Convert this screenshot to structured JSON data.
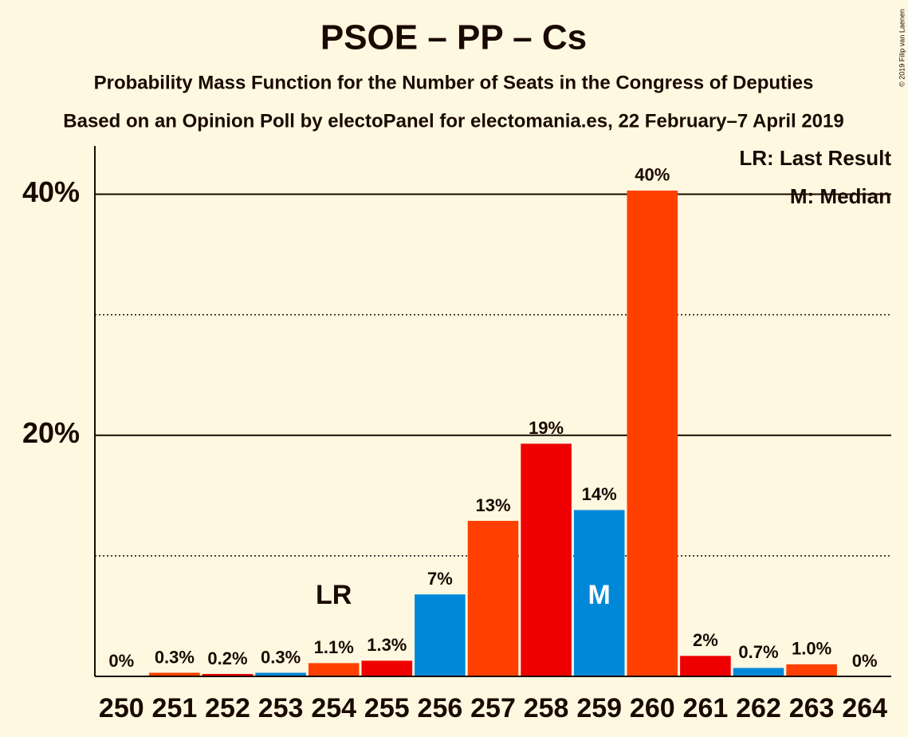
{
  "chart_data": {
    "type": "bar",
    "title": "PSOE – PP – Cs",
    "subtitle": "Probability Mass Function for the Number of Seats in the Congress of Deputies",
    "source": "Based on an Opinion Poll by electoPanel for electomania.es, 22 February–7 April 2019",
    "copyright": "© 2019 Filip van Laenen",
    "categories": [
      "250",
      "251",
      "252",
      "253",
      "254",
      "255",
      "256",
      "257",
      "258",
      "259",
      "260",
      "261",
      "262",
      "263",
      "264"
    ],
    "values": [
      0,
      0.3,
      0.2,
      0.3,
      1.1,
      1.3,
      6.8,
      12.9,
      19.3,
      13.8,
      40.3,
      1.7,
      0.7,
      1.0,
      0
    ],
    "value_labels": [
      "0%",
      "0.3%",
      "0.2%",
      "0.3%",
      "1.1%",
      "1.3%",
      "7%",
      "13%",
      "19%",
      "14%",
      "40%",
      "2%",
      "0.7%",
      "1.0%",
      "0%"
    ],
    "colors": [
      "#0088d8",
      "#ff4000",
      "#ee0000",
      "#0088d8",
      "#ff4000",
      "#ee0000",
      "#0088d8",
      "#ff4000",
      "#ee0000",
      "#0088d8",
      "#ff4000",
      "#ee0000",
      "#0088d8",
      "#ff4000",
      "#ee0000"
    ],
    "ylim": [
      0,
      44
    ],
    "yticks": [
      {
        "value": 20,
        "label": "20%"
      },
      {
        "value": 40,
        "label": "40%"
      }
    ],
    "minor_gridlines": [
      10,
      30
    ],
    "grid": true,
    "annotations": [
      {
        "category": "254",
        "text": "LR",
        "color": "#1a0a00"
      },
      {
        "category": "259",
        "text": "M",
        "color": "#ffffff"
      }
    ],
    "legend_notes": [
      "LR: Last Result",
      "M: Median"
    ],
    "legend_position": "top-right"
  }
}
